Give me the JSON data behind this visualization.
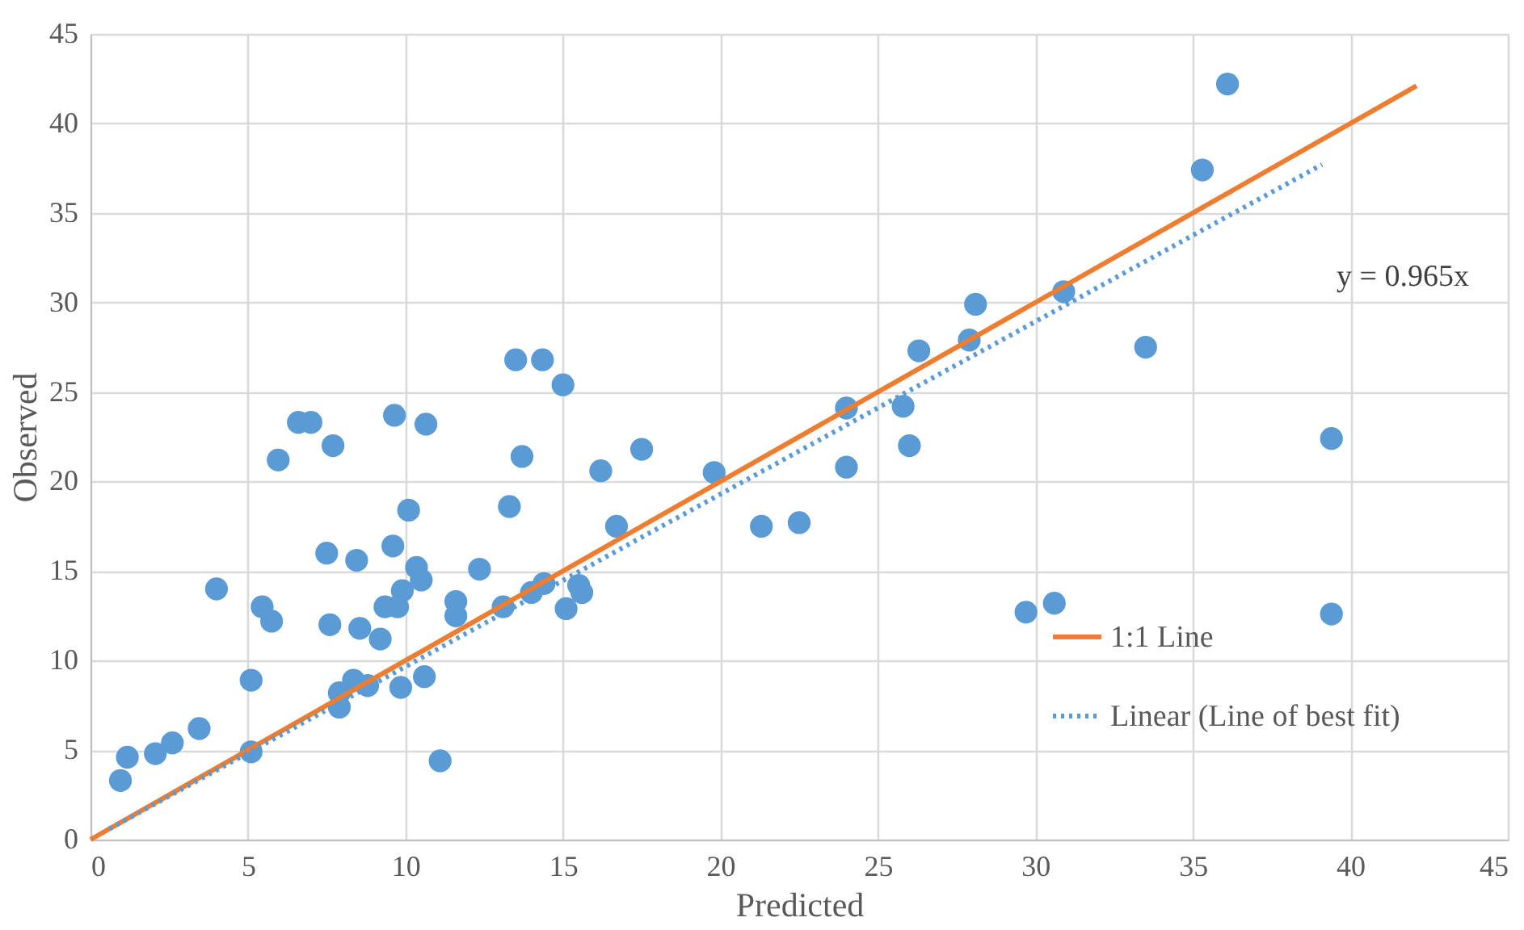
{
  "chart_data": {
    "type": "scatter",
    "xlabel": "Predicted",
    "ylabel": "Observed",
    "xlim": [
      0,
      45
    ],
    "ylim": [
      0,
      45
    ],
    "xticks": [
      0,
      5,
      10,
      15,
      20,
      25,
      30,
      35,
      40,
      45
    ],
    "yticks": [
      0,
      5,
      10,
      15,
      20,
      25,
      30,
      35,
      40,
      45
    ],
    "grid": true,
    "legend": "bottom right",
    "series": [
      {
        "color": "#5b9bd5",
        "marker": "circle",
        "x": [
          0.95,
          1.17,
          2.06,
          2.6,
          3.45,
          4.0,
          5.1,
          5.1,
          5.45,
          5.75,
          5.96,
          6.6,
          7.0,
          7.7,
          7.5,
          7.6,
          7.9,
          7.9,
          8.35,
          8.45,
          8.55,
          8.8,
          9.2,
          9.35,
          9.75,
          9.6,
          9.65,
          9.85,
          9.9,
          10.1,
          10.35,
          10.5,
          10.6,
          10.65,
          11.1,
          11.6,
          11.6,
          12.35,
          13.3,
          13.7,
          13.1,
          13.5,
          14.35,
          15.0,
          16.2,
          17.5,
          19.8,
          16.7,
          14.0,
          14.4,
          15.5,
          15.6,
          15.1,
          28.1,
          27.9,
          26.3,
          25.8,
          24.0,
          24.0,
          26.0,
          21.3,
          22.5,
          30.9,
          33.5,
          35.3,
          36.1,
          39.4,
          39.4,
          29.7,
          30.6
        ],
        "values": [
          3.3,
          4.6,
          4.8,
          5.4,
          6.2,
          14.0,
          8.9,
          4.9,
          13.0,
          12.2,
          21.2,
          23.3,
          23.3,
          22.0,
          16.0,
          12.0,
          8.2,
          7.4,
          8.9,
          15.6,
          11.8,
          8.6,
          11.2,
          13.0,
          13.0,
          16.4,
          23.7,
          8.5,
          13.9,
          18.4,
          15.2,
          14.5,
          9.1,
          23.2,
          4.4,
          13.3,
          12.5,
          15.1,
          18.6,
          21.4,
          13.0,
          26.8,
          26.8,
          25.4,
          20.6,
          21.8,
          20.5,
          17.5,
          13.8,
          14.3,
          14.2,
          13.8,
          12.9,
          29.9,
          27.9,
          27.3,
          24.2,
          24.1,
          20.8,
          22.0,
          17.5,
          17.7,
          30.6,
          27.5,
          37.4,
          42.2,
          22.4,
          12.6,
          12.7,
          13.2
        ]
      },
      {
        "type": "line",
        "name": "1:1 Line",
        "color": "#ed7d31",
        "line_style": "solid",
        "marker": "none",
        "x": [
          0,
          42.1
        ],
        "values": [
          0,
          42.1
        ]
      },
      {
        "type": "line",
        "name": "Linear (Line of best fit)",
        "color": "#5b9bd5",
        "line_style": "dotted",
        "marker": "none",
        "x": [
          0.6,
          39.1
        ],
        "values": [
          0.6,
          37.7
        ]
      }
    ],
    "annotations": [
      "y = 0.965x"
    ]
  }
}
